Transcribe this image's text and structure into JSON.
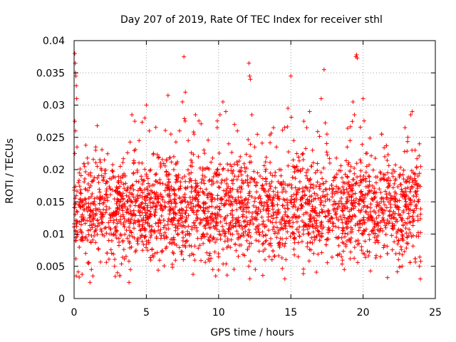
{
  "chart_data": {
    "type": "scatter",
    "title": "Day 207 of 2019, Rate Of TEC Index for receiver sthl",
    "xlabel": "GPS time / hours",
    "ylabel": "ROTI / TECUs",
    "xlim": [
      0,
      25
    ],
    "ylim": [
      0,
      0.04
    ],
    "xticks": [
      0,
      5,
      10,
      15,
      20,
      25
    ],
    "xtick_labels": [
      "0",
      "5",
      "10",
      "15",
      "20",
      "25"
    ],
    "yticks": [
      0,
      0.005,
      0.01,
      0.015,
      0.02,
      0.025,
      0.03,
      0.035,
      0.04
    ],
    "ytick_labels": [
      "0",
      "0.005",
      "0.01",
      "0.015",
      "0.02",
      "0.025",
      "0.03",
      "0.035",
      "0.04"
    ],
    "grid": true,
    "marker": "+",
    "color": "#ff0000",
    "series": [
      {
        "name": "ROTI",
        "description_range_x": [
          0,
          24
        ],
        "typical_band": [
          0.003,
          0.024
        ],
        "points": [
          [
            0.05,
            0.038
          ],
          [
            0.08,
            0.0365
          ],
          [
            0.1,
            0.035
          ],
          [
            0.12,
            0.0345
          ],
          [
            0.15,
            0.033
          ],
          [
            0.18,
            0.031
          ],
          [
            0.05,
            0.0275
          ],
          [
            0.1,
            0.026
          ],
          [
            0.2,
            0.0235
          ],
          [
            0.05,
            0.0225
          ],
          [
            0.3,
            0.018
          ],
          [
            0.4,
            0.015
          ],
          [
            0.5,
            0.012
          ],
          [
            0.6,
            0.009
          ],
          [
            0.8,
            0.007
          ],
          [
            1.0,
            0.0055
          ],
          [
            1.2,
            0.0045
          ],
          [
            1.3,
            0.0035
          ],
          [
            1.1,
            0.0025
          ],
          [
            0.15,
            0.0035
          ],
          [
            1.5,
            0.0235
          ],
          [
            1.6,
            0.0205
          ],
          [
            1.7,
            0.018
          ],
          [
            1.8,
            0.0155
          ],
          [
            2.0,
            0.013
          ],
          [
            2.2,
            0.011
          ],
          [
            2.4,
            0.009
          ],
          [
            2.6,
            0.007
          ],
          [
            2.8,
            0.005
          ],
          [
            3.0,
            0.004
          ],
          [
            1.6,
            0.0268
          ],
          [
            2.1,
            0.0215
          ],
          [
            2.5,
            0.017
          ],
          [
            3.2,
            0.0205
          ],
          [
            3.4,
            0.0155
          ],
          [
            3.6,
            0.012
          ],
          [
            3.8,
            0.0025
          ],
          [
            3.9,
            0.0045
          ],
          [
            4.0,
            0.0285
          ],
          [
            4.2,
            0.0275
          ],
          [
            4.5,
            0.0245
          ],
          [
            4.7,
            0.021
          ],
          [
            4.9,
            0.028
          ],
          [
            5.0,
            0.03
          ],
          [
            5.2,
            0.026
          ],
          [
            5.5,
            0.0225
          ],
          [
            5.8,
            0.018
          ],
          [
            6.0,
            0.0145
          ],
          [
            6.2,
            0.011
          ],
          [
            6.4,
            0.008
          ],
          [
            6.5,
            0.0315
          ],
          [
            6.7,
            0.0255
          ],
          [
            6.9,
            0.022
          ],
          [
            7.1,
            0.019
          ],
          [
            7.3,
            0.026
          ],
          [
            7.5,
            0.0305
          ],
          [
            7.6,
            0.0375
          ],
          [
            7.7,
            0.032
          ],
          [
            7.9,
            0.0245
          ],
          [
            8.1,
            0.0195
          ],
          [
            8.3,
            0.0255
          ],
          [
            8.4,
            0.0285
          ],
          [
            8.6,
            0.022
          ],
          [
            8.8,
            0.018
          ],
          [
            9.0,
            0.0135
          ],
          [
            9.2,
            0.01
          ],
          [
            9.4,
            0.007
          ],
          [
            9.6,
            0.0045
          ],
          [
            9.8,
            0.0035
          ],
          [
            9.9,
            0.0265
          ],
          [
            10.1,
            0.0285
          ],
          [
            10.3,
            0.0305
          ],
          [
            10.5,
            0.029
          ],
          [
            10.7,
            0.024
          ],
          [
            10.9,
            0.0205
          ],
          [
            11.1,
            0.027
          ],
          [
            11.3,
            0.026
          ],
          [
            11.5,
            0.022
          ],
          [
            11.7,
            0.018
          ],
          [
            11.9,
            0.0145
          ],
          [
            12.1,
            0.0365
          ],
          [
            12.15,
            0.0345
          ],
          [
            12.2,
            0.034
          ],
          [
            12.3,
            0.0285
          ],
          [
            12.5,
            0.0235
          ],
          [
            12.7,
            0.0195
          ],
          [
            12.9,
            0.0155
          ],
          [
            13.1,
            0.012
          ],
          [
            13.3,
            0.009
          ],
          [
            13.5,
            0.0065
          ],
          [
            13.8,
            0.0265
          ],
          [
            14.0,
            0.0235
          ],
          [
            14.2,
            0.02
          ],
          [
            14.4,
            0.0165
          ],
          [
            14.6,
            0.013
          ],
          [
            14.8,
            0.0295
          ],
          [
            15.0,
            0.0345
          ],
          [
            15.2,
            0.0245
          ],
          [
            15.4,
            0.0205
          ],
          [
            15.6,
            0.017
          ],
          [
            15.9,
            0.0275
          ],
          [
            16.1,
            0.0265
          ],
          [
            16.3,
            0.029
          ],
          [
            16.5,
            0.023
          ],
          [
            16.7,
            0.0195
          ],
          [
            16.9,
            0.0155
          ],
          [
            17.1,
            0.031
          ],
          [
            17.3,
            0.0355
          ],
          [
            17.5,
            0.0255
          ],
          [
            17.7,
            0.021
          ],
          [
            17.9,
            0.0165
          ],
          [
            18.1,
            0.013
          ],
          [
            18.3,
            0.0095
          ],
          [
            18.5,
            0.0065
          ],
          [
            18.7,
            0.0045
          ],
          [
            18.9,
            0.0235
          ],
          [
            19.1,
            0.0245
          ],
          [
            19.3,
            0.0305
          ],
          [
            19.4,
            0.0285
          ],
          [
            19.5,
            0.0375
          ],
          [
            19.55,
            0.0378
          ],
          [
            19.6,
            0.0373
          ],
          [
            19.8,
            0.0215
          ],
          [
            20.0,
            0.031
          ],
          [
            20.2,
            0.0225
          ],
          [
            20.4,
            0.019
          ],
          [
            20.6,
            0.0155
          ],
          [
            20.8,
            0.012
          ],
          [
            21.0,
            0.009
          ],
          [
            21.2,
            0.0065
          ],
          [
            21.5,
            0.022
          ],
          [
            21.7,
            0.0195
          ],
          [
            21.9,
            0.016
          ],
          [
            22.1,
            0.0125
          ],
          [
            22.3,
            0.0095
          ],
          [
            22.5,
            0.007
          ],
          [
            22.7,
            0.005
          ],
          [
            22.9,
            0.0265
          ],
          [
            23.1,
            0.025
          ],
          [
            23.3,
            0.0285
          ],
          [
            23.4,
            0.029
          ],
          [
            23.6,
            0.023
          ],
          [
            23.8,
            0.019
          ],
          [
            23.9,
            0.024
          ],
          [
            23.9,
            0.005
          ]
        ]
      }
    ]
  }
}
